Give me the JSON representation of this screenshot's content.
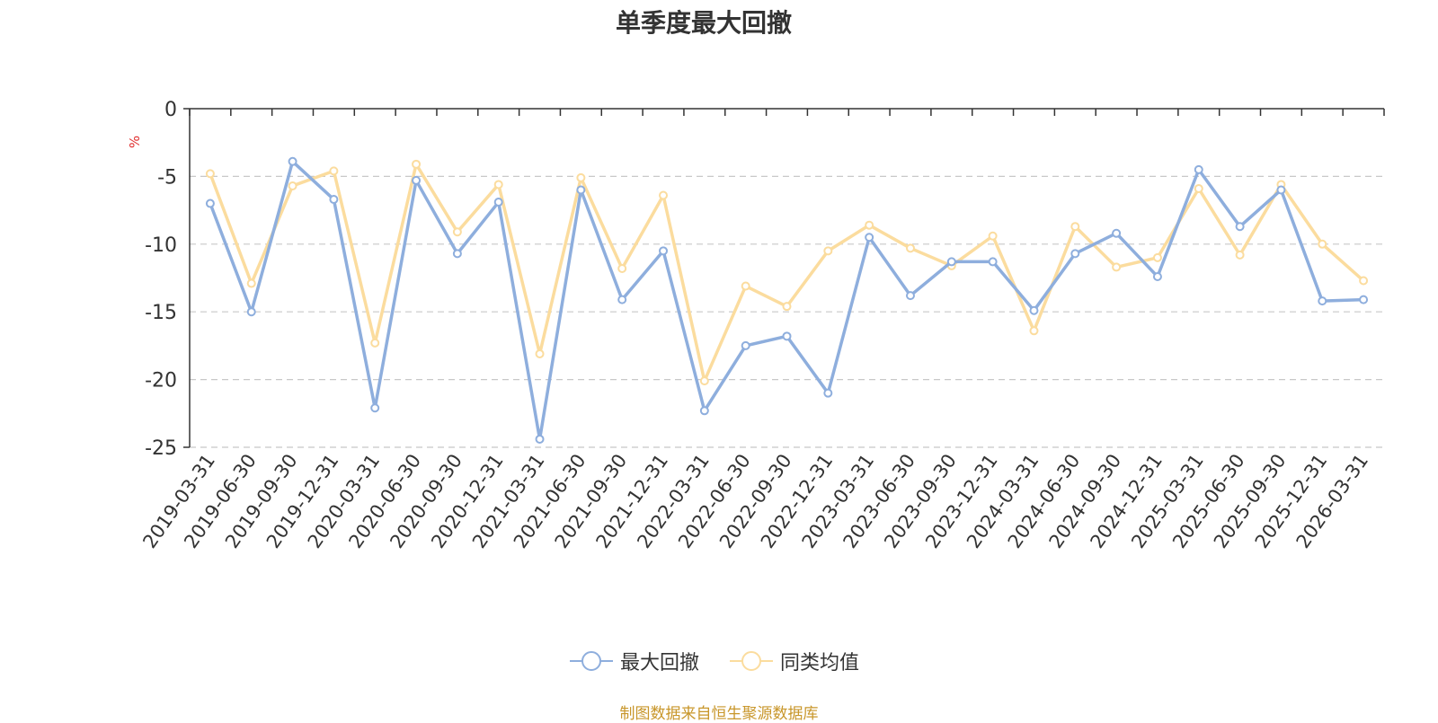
{
  "chart_data": {
    "type": "line",
    "title": "单季度最大回撤",
    "ylabel": "%",
    "xlabel": "",
    "ylim": [
      -25,
      0
    ],
    "yticks": [
      0,
      -5,
      -10,
      -15,
      -20,
      -25
    ],
    "grid": true,
    "legend_position": "bottom-center",
    "categories": [
      "2019-03-31",
      "2019-06-30",
      "2019-09-30",
      "2019-12-31",
      "2020-03-31",
      "2020-06-30",
      "2020-09-30",
      "2020-12-31",
      "2021-03-31",
      "2021-06-30",
      "2021-09-30",
      "2021-12-31",
      "2022-03-31",
      "2022-06-30",
      "2022-09-30",
      "2022-12-31",
      "2023-03-31",
      "2023-06-30",
      "2023-09-30",
      "2023-12-31",
      "2024-03-31",
      "2024-06-30",
      "2024-09-30",
      "2024-12-31",
      "2025-03-31",
      "2025-06-30",
      "2025-09-30",
      "2025-12-31",
      "2026-03-31"
    ],
    "series": [
      {
        "name": "最大回撤",
        "color": "#8eaedd",
        "values": [
          -7.0,
          -15.0,
          -3.9,
          -6.7,
          -22.1,
          -5.3,
          -10.7,
          -6.9,
          -24.4,
          -6.0,
          -14.1,
          -10.5,
          -22.3,
          -17.5,
          -16.8,
          -21.0,
          -9.5,
          -13.8,
          -11.3,
          -11.3,
          -14.9,
          -10.7,
          -9.2,
          -12.4,
          -4.5,
          -8.7,
          -6.0,
          -14.2,
          -14.1
        ]
      },
      {
        "name": "同类均值",
        "color": "#fbdc9e",
        "values": [
          -4.8,
          -12.9,
          -5.7,
          -4.6,
          -17.3,
          -4.1,
          -9.1,
          -5.6,
          -18.1,
          -5.1,
          -11.8,
          -6.4,
          -20.1,
          -13.1,
          -14.6,
          -10.5,
          -8.6,
          -10.3,
          -11.6,
          -9.4,
          -16.4,
          -8.7,
          -11.7,
          -11.0,
          -5.9,
          -10.8,
          -5.6,
          -10.0,
          -12.7
        ]
      }
    ]
  },
  "source_note": "制图数据来自恒生聚源数据库"
}
